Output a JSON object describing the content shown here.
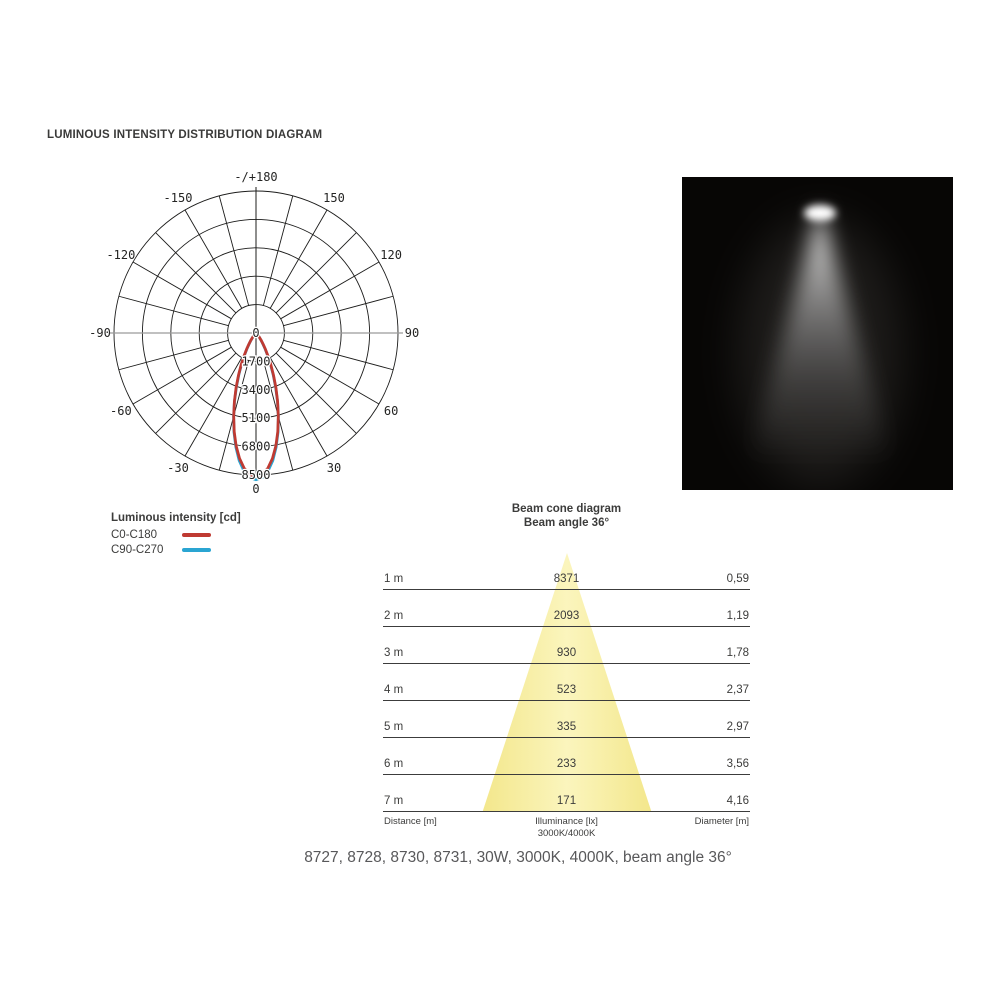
{
  "title": "LUMINOUS INTENSITY DISTRIBUTION DIAGRAM",
  "legend": {
    "heading": "Luminous intensity [cd]",
    "items": [
      {
        "label": "C0-C180",
        "color": "#bf3a32"
      },
      {
        "label": "C90-C270",
        "color": "#2aa5d2"
      }
    ]
  },
  "beam_cone": {
    "title": "Beam cone diagram",
    "subtitle": "Beam angle 36°",
    "footer": {
      "distance": "Distance [m]",
      "illuminance": "Illuminance [lx]",
      "cct": "3000K/4000K",
      "diameter": "Diameter [m]"
    }
  },
  "caption": "8727, 8728, 8730, 8731, 30W, 3000K, 4000K, beam angle 36°",
  "colors": {
    "curve_red": "#bf3a32",
    "curve_blue": "#2aa5d2",
    "cone_yellow": "#f8efa0",
    "photo_background": "#070605",
    "grid_line": "#1c1c1b",
    "table_line": "#3c3c3c"
  },
  "chart_data": [
    {
      "type": "polar",
      "name": "luminous-intensity-distribution",
      "units": "cd",
      "angle_grid_step_deg": 15,
      "rmax": 8500,
      "radial_ticks": [
        0,
        1700,
        3400,
        5100,
        6800,
        8500
      ],
      "angle_labels": [
        {
          "angle": 180,
          "label": "-/+180"
        },
        {
          "angle": -150,
          "label": "-150"
        },
        {
          "angle": 150,
          "label": "150"
        },
        {
          "angle": -120,
          "label": "-120"
        },
        {
          "angle": 120,
          "label": "120"
        },
        {
          "angle": -90,
          "label": "-90"
        },
        {
          "angle": 90,
          "label": "90"
        },
        {
          "angle": -60,
          "label": "-60"
        },
        {
          "angle": 60,
          "label": "60"
        },
        {
          "angle": -30,
          "label": "-30"
        },
        {
          "angle": 30,
          "label": "30"
        },
        {
          "angle": 0,
          "label": "0"
        }
      ],
      "series": [
        {
          "name": "C0-C180",
          "color": "#bf3a32",
          "points": [
            [
              -45,
              88
            ],
            [
              -42.5,
              144
            ],
            [
              -40,
              230
            ],
            [
              -37.5,
              357
            ],
            [
              -35,
              538
            ],
            [
              -32.5,
              788
            ],
            [
              -30,
              1122
            ],
            [
              -27.5,
              1553
            ],
            [
              -25,
              2090
            ],
            [
              -22.5,
              2735
            ],
            [
              -20,
              3478
            ],
            [
              -17.5,
              4300
            ],
            [
              -15,
              5168
            ],
            [
              -12.5,
              6039
            ],
            [
              -10,
              6858
            ],
            [
              -7.5,
              7572
            ],
            [
              -5,
              8127
            ],
            [
              -2.5,
              8479
            ],
            [
              0,
              8600
            ],
            [
              2.5,
              8479
            ],
            [
              5,
              8127
            ],
            [
              7.5,
              7572
            ],
            [
              10,
              6858
            ],
            [
              12.5,
              6039
            ],
            [
              15,
              5168
            ],
            [
              17.5,
              4300
            ],
            [
              20,
              3478
            ],
            [
              22.5,
              2735
            ],
            [
              25,
              2090
            ],
            [
              27.5,
              1553
            ],
            [
              30,
              1122
            ],
            [
              32.5,
              788
            ],
            [
              35,
              538
            ],
            [
              37.5,
              357
            ],
            [
              40,
              230
            ],
            [
              42.5,
              144
            ],
            [
              45,
              88
            ]
          ]
        },
        {
          "name": "C90-C270",
          "color": "#2aa5d2",
          "points": [
            [
              -45,
              76
            ],
            [
              -42.5,
              128
            ],
            [
              -40,
              207
            ],
            [
              -37.5,
              326
            ],
            [
              -35,
              498
            ],
            [
              -32.5,
              738
            ],
            [
              -30,
              1066
            ],
            [
              -27.5,
              1493
            ],
            [
              -25,
              2030
            ],
            [
              -22.5,
              2681
            ],
            [
              -20,
              3439
            ],
            [
              -17.5,
              4285
            ],
            [
              -15,
              5182
            ],
            [
              -12.5,
              6089
            ],
            [
              -10,
              6945
            ],
            [
              -7.5,
              7696
            ],
            [
              -5,
              8280
            ],
            [
              -2.5,
              8652
            ],
            [
              0,
              8780
            ],
            [
              2.5,
              8652
            ],
            [
              5,
              8280
            ],
            [
              7.5,
              7696
            ],
            [
              10,
              6945
            ],
            [
              12.5,
              6089
            ],
            [
              15,
              5182
            ],
            [
              17.5,
              4285
            ],
            [
              20,
              3439
            ],
            [
              22.5,
              2681
            ],
            [
              25,
              2030
            ],
            [
              27.5,
              1493
            ],
            [
              30,
              1066
            ],
            [
              32.5,
              738
            ],
            [
              35,
              498
            ],
            [
              37.5,
              326
            ],
            [
              40,
              207
            ],
            [
              42.5,
              128
            ],
            [
              45,
              76
            ]
          ]
        }
      ]
    },
    {
      "type": "table",
      "name": "beam-cone-table",
      "title": "Beam cone diagram",
      "subtitle": "Beam angle 36°",
      "beam_angle_deg": 36,
      "columns": [
        "Distance [m]",
        "Illuminance [lx] 3000K/4000K",
        "Diameter [m]"
      ],
      "rows": [
        [
          "1 m",
          "8371",
          "0,59"
        ],
        [
          "2 m",
          "2093",
          "1,19"
        ],
        [
          "3 m",
          "930",
          "1,78"
        ],
        [
          "4 m",
          "523",
          "2,37"
        ],
        [
          "5 m",
          "335",
          "2,97"
        ],
        [
          "6 m",
          "233",
          "3,56"
        ],
        [
          "7 m",
          "171",
          "4,16"
        ]
      ]
    }
  ]
}
